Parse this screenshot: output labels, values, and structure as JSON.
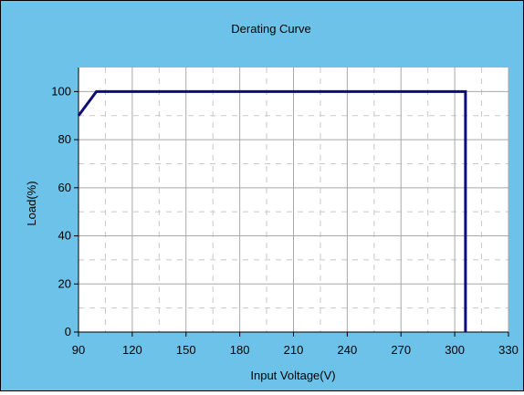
{
  "chart_data": {
    "type": "line",
    "title": "Derating Curve",
    "xlabel": "Input Voltage(V)",
    "ylabel": "Load(%)",
    "xlim": [
      90,
      330
    ],
    "ylim": [
      0,
      110
    ],
    "x_ticks": [
      90,
      120,
      150,
      180,
      210,
      240,
      270,
      300,
      330
    ],
    "y_ticks": [
      0,
      20,
      40,
      60,
      80,
      100
    ],
    "grid": true,
    "legend": "none",
    "series": [
      {
        "x": [
          90,
          100,
          306,
          306
        ],
        "y": [
          90,
          100,
          100,
          0
        ]
      }
    ],
    "colors": {
      "figure_background": "#6cc2e8",
      "plot_background": "#ffffff",
      "line": "#0d0d7a",
      "grid_major": "#a8a8a8",
      "grid_minor": "#c8c8c8"
    }
  }
}
